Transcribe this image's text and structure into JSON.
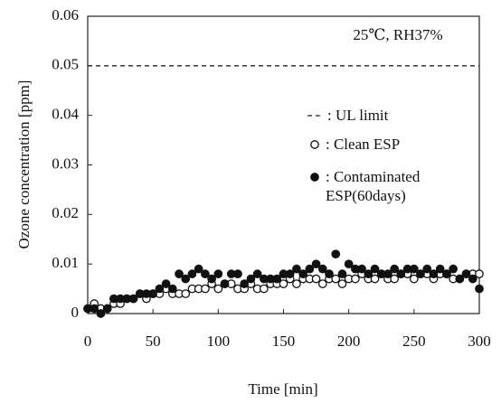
{
  "chart_data": {
    "type": "scatter",
    "annotation": "25℃, RH37%",
    "x_label": "Time [min]",
    "y_label": "Ozone concentration [ppm]",
    "xlim": [
      0,
      300
    ],
    "xticks": [
      0,
      50,
      100,
      150,
      200,
      250,
      300
    ],
    "ylim": [
      0,
      0.06
    ],
    "yticks": [
      0,
      0.01,
      0.02,
      0.03,
      0.04,
      0.05,
      0.06
    ],
    "reference_line": {
      "name": ": UL limit",
      "value": 0.05,
      "color": "#222"
    },
    "x": [
      0,
      5,
      10,
      15,
      20,
      25,
      30,
      35,
      40,
      45,
      50,
      55,
      60,
      65,
      70,
      75,
      80,
      85,
      90,
      95,
      100,
      105,
      110,
      115,
      120,
      125,
      130,
      135,
      140,
      145,
      150,
      155,
      160,
      165,
      170,
      175,
      180,
      185,
      190,
      195,
      200,
      205,
      210,
      215,
      220,
      225,
      230,
      235,
      240,
      245,
      250,
      255,
      260,
      265,
      270,
      275,
      280,
      285,
      290,
      295,
      300
    ],
    "series": [
      {
        "name": ": Clean ESP",
        "color": "#111",
        "marker": "open",
        "values": [
          0.001,
          0.002,
          0.001,
          0.001,
          0.002,
          0.002,
          0.003,
          0.003,
          0.004,
          0.003,
          0.004,
          0.004,
          0.005,
          0.004,
          0.004,
          0.004,
          0.005,
          0.005,
          0.005,
          0.006,
          0.005,
          0.006,
          0.006,
          0.005,
          0.005,
          0.006,
          0.005,
          0.005,
          0.006,
          0.006,
          0.006,
          0.007,
          0.006,
          0.007,
          0.007,
          0.007,
          0.006,
          0.007,
          0.007,
          0.006,
          0.007,
          0.007,
          0.008,
          0.007,
          0.007,
          0.008,
          0.007,
          0.007,
          0.008,
          0.008,
          0.007,
          0.008,
          0.008,
          0.007,
          0.008,
          0.008,
          0.007,
          0.007,
          0.008,
          0.008,
          0.008
        ]
      },
      {
        "name": ": Contaminated ESP(60days)",
        "color": "#111",
        "marker": "filled",
        "values": [
          0.001,
          0.001,
          0,
          0.001,
          0.003,
          0.003,
          0.003,
          0.003,
          0.004,
          0.004,
          0.004,
          0.005,
          0.006,
          0.005,
          0.008,
          0.007,
          0.008,
          0.009,
          0.008,
          0.007,
          0.008,
          0.006,
          0.008,
          0.008,
          0.006,
          0.007,
          0.008,
          0.007,
          0.007,
          0.007,
          0.008,
          0.008,
          0.009,
          0.008,
          0.009,
          0.01,
          0.009,
          0.008,
          0.012,
          0.008,
          0.01,
          0.009,
          0.009,
          0.008,
          0.009,
          0.008,
          0.008,
          0.009,
          0.008,
          0.009,
          0.009,
          0.008,
          0.009,
          0.008,
          0.009,
          0.008,
          0.009,
          0.007,
          0.008,
          0.007,
          0.005
        ]
      }
    ]
  }
}
